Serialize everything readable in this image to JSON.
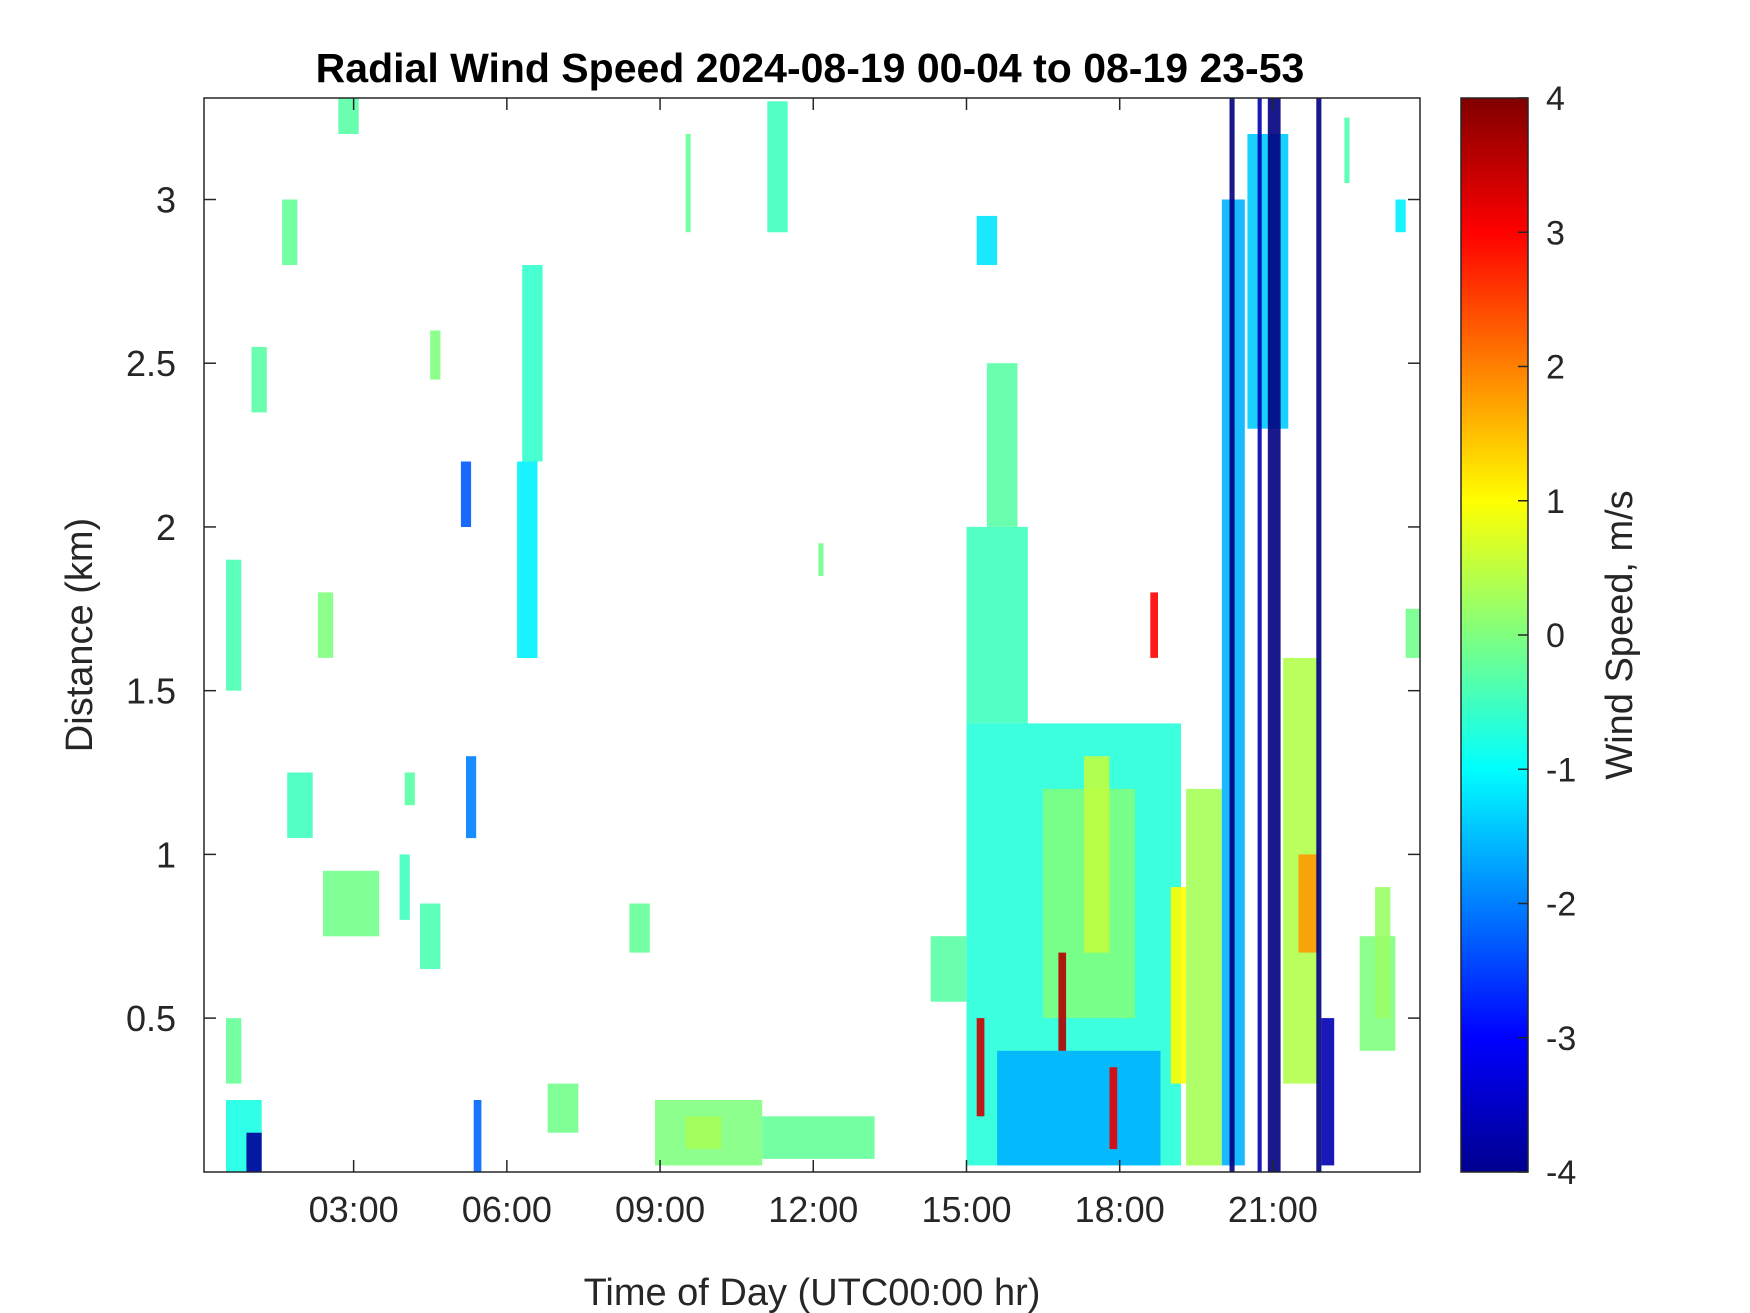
{
  "chart_data": {
    "type": "heatmap",
    "title": "Radial Wind Speed 2024-08-19 00-04 to 08-19 23-53",
    "xlabel": "Time of Day (UTC00:00 hr)",
    "ylabel": "Distance (km)",
    "x_ticks": [
      {
        "value": 3,
        "label": "03:00"
      },
      {
        "value": 6,
        "label": "06:00"
      },
      {
        "value": 9,
        "label": "09:00"
      },
      {
        "value": 12,
        "label": "12:00"
      },
      {
        "value": 15,
        "label": "15:00"
      },
      {
        "value": 18,
        "label": "18:00"
      },
      {
        "value": 21,
        "label": "21:00"
      }
    ],
    "y_ticks": [
      {
        "value": 0.5,
        "label": "0.5"
      },
      {
        "value": 1,
        "label": "1"
      },
      {
        "value": 1.5,
        "label": "1.5"
      },
      {
        "value": 2,
        "label": "2"
      },
      {
        "value": 2.5,
        "label": "2.5"
      },
      {
        "value": 3,
        "label": "3"
      }
    ],
    "xlim": [
      0.07,
      23.88
    ],
    "ylim": [
      0.03,
      3.31
    ],
    "grid": false,
    "colorbar": {
      "label": "Wind Speed, m/s",
      "range": [
        -4,
        4
      ],
      "colormap": "jet",
      "ticks": [
        {
          "value": 4,
          "label": "4"
        },
        {
          "value": 3,
          "label": "3"
        },
        {
          "value": 2,
          "label": "2"
        },
        {
          "value": 1,
          "label": "1"
        },
        {
          "value": 0,
          "label": "0"
        },
        {
          "value": -1,
          "label": "-1"
        },
        {
          "value": -2,
          "label": "-2"
        },
        {
          "value": -3,
          "label": "-3"
        },
        {
          "value": -4,
          "label": "-4"
        }
      ]
    },
    "regions": [
      {
        "x": [
          0.5,
          1.2
        ],
        "y": [
          0.03,
          0.25
        ],
        "v": -0.8
      },
      {
        "x": [
          0.9,
          1.2
        ],
        "y": [
          0.03,
          0.15
        ],
        "v": -3.8
      },
      {
        "x": [
          0.5,
          0.8
        ],
        "y": [
          0.3,
          0.5
        ],
        "v": -0.2
      },
      {
        "x": [
          0.5,
          0.8
        ],
        "y": [
          1.5,
          1.9
        ],
        "v": -0.4
      },
      {
        "x": [
          1.0,
          1.3
        ],
        "y": [
          2.35,
          2.55
        ],
        "v": -0.3
      },
      {
        "x": [
          1.6,
          1.9
        ],
        "y": [
          2.8,
          3.0
        ],
        "v": -0.2
      },
      {
        "x": [
          2.7,
          3.1
        ],
        "y": [
          3.2,
          3.31
        ],
        "v": -0.3
      },
      {
        "x": [
          1.7,
          2.2
        ],
        "y": [
          1.05,
          1.25
        ],
        "v": -0.5
      },
      {
        "x": [
          2.4,
          3.5
        ],
        "y": [
          0.75,
          0.95
        ],
        "v": -0.1
      },
      {
        "x": [
          2.3,
          2.6
        ],
        "y": [
          1.6,
          1.8
        ],
        "v": 0.0
      },
      {
        "x": [
          3.9,
          4.1
        ],
        "y": [
          0.8,
          1.0
        ],
        "v": -0.5
      },
      {
        "x": [
          4.3,
          4.7
        ],
        "y": [
          0.65,
          0.85
        ],
        "v": -0.4
      },
      {
        "x": [
          4.0,
          4.2
        ],
        "y": [
          1.15,
          1.25
        ],
        "v": -0.3
      },
      {
        "x": [
          4.5,
          4.7
        ],
        "y": [
          2.45,
          2.6
        ],
        "v": 0.0
      },
      {
        "x": [
          5.2,
          5.4
        ],
        "y": [
          1.05,
          1.3
        ],
        "v": -2.0
      },
      {
        "x": [
          5.1,
          5.3
        ],
        "y": [
          2.0,
          2.2
        ],
        "v": -2.3
      },
      {
        "x": [
          5.35,
          5.5
        ],
        "y": [
          0.03,
          0.25
        ],
        "v": -2.2
      },
      {
        "x": [
          6.2,
          6.6
        ],
        "y": [
          1.6,
          2.2
        ],
        "v": -1.1
      },
      {
        "x": [
          6.3,
          6.7
        ],
        "y": [
          2.2,
          2.8
        ],
        "v": -0.6
      },
      {
        "x": [
          6.8,
          7.4
        ],
        "y": [
          0.15,
          0.3
        ],
        "v": -0.1
      },
      {
        "x": [
          8.4,
          8.8
        ],
        "y": [
          0.7,
          0.85
        ],
        "v": -0.2
      },
      {
        "x": [
          8.9,
          11.0
        ],
        "y": [
          0.05,
          0.25
        ],
        "v": 0.0
      },
      {
        "x": [
          9.5,
          10.2
        ],
        "y": [
          0.1,
          0.2
        ],
        "v": 0.3
      },
      {
        "x": [
          11.0,
          13.2
        ],
        "y": [
          0.07,
          0.2
        ],
        "v": -0.2
      },
      {
        "x": [
          11.1,
          11.5
        ],
        "y": [
          2.9,
          3.3
        ],
        "v": -0.5
      },
      {
        "x": [
          9.5,
          9.6
        ],
        "y": [
          2.9,
          3.2
        ],
        "v": -0.2
      },
      {
        "x": [
          12.1,
          12.2
        ],
        "y": [
          1.85,
          1.95
        ],
        "v": -0.1
      },
      {
        "x": [
          14.3,
          15.0
        ],
        "y": [
          0.55,
          0.75
        ],
        "v": -0.3
      },
      {
        "x": [
          15.0,
          19.2
        ],
        "y": [
          0.05,
          1.4
        ],
        "v": -0.7
      },
      {
        "x": [
          15.6,
          18.8
        ],
        "y": [
          0.05,
          0.4
        ],
        "v": -1.6
      },
      {
        "x": [
          16.5,
          18.3
        ],
        "y": [
          0.5,
          1.2
        ],
        "v": 0.0
      },
      {
        "x": [
          17.3,
          17.8
        ],
        "y": [
          0.7,
          1.3
        ],
        "v": 0.5
      },
      {
        "x": [
          15.0,
          16.2
        ],
        "y": [
          1.4,
          2.0
        ],
        "v": -0.5
      },
      {
        "x": [
          15.4,
          16.0
        ],
        "y": [
          2.0,
          2.5
        ],
        "v": -0.3
      },
      {
        "x": [
          15.2,
          15.6
        ],
        "y": [
          2.8,
          2.95
        ],
        "v": -1.2
      },
      {
        "x": [
          15.2,
          15.35
        ],
        "y": [
          0.2,
          0.5
        ],
        "v": 3.4
      },
      {
        "x": [
          16.8,
          16.95
        ],
        "y": [
          0.4,
          0.7
        ],
        "v": 3.6
      },
      {
        "x": [
          17.8,
          17.95
        ],
        "y": [
          0.1,
          0.35
        ],
        "v": 3.2
      },
      {
        "x": [
          18.6,
          18.75
        ],
        "y": [
          1.6,
          1.8
        ],
        "v": 3.0
      },
      {
        "x": [
          19.3,
          20.0
        ],
        "y": [
          0.05,
          1.2
        ],
        "v": 0.3
      },
      {
        "x": [
          19.0,
          19.3
        ],
        "y": [
          0.3,
          0.9
        ],
        "v": 1.0
      },
      {
        "x": [
          20.0,
          20.45
        ],
        "y": [
          0.05,
          3.0
        ],
        "v": -1.6
      },
      {
        "x": [
          20.15,
          20.25
        ],
        "y": [
          0.03,
          3.31
        ],
        "v": -4.0
      },
      {
        "x": [
          20.5,
          21.3
        ],
        "y": [
          2.3,
          3.2
        ],
        "v": -1.4
      },
      {
        "x": [
          20.9,
          21.15
        ],
        "y": [
          0.03,
          3.31
        ],
        "v": -4.0
      },
      {
        "x": [
          20.7,
          20.78
        ],
        "y": [
          0.03,
          3.31
        ],
        "v": -3.6
      },
      {
        "x": [
          21.2,
          21.9
        ],
        "y": [
          0.3,
          1.6
        ],
        "v": 0.4
      },
      {
        "x": [
          21.5,
          21.9
        ],
        "y": [
          0.7,
          1.0
        ],
        "v": 1.8
      },
      {
        "x": [
          21.85,
          21.95
        ],
        "y": [
          0.03,
          3.31
        ],
        "v": -4.0
      },
      {
        "x": [
          21.95,
          22.2
        ],
        "y": [
          0.05,
          0.5
        ],
        "v": -3.6
      },
      {
        "x": [
          22.4,
          22.5
        ],
        "y": [
          3.05,
          3.25
        ],
        "v": -0.4
      },
      {
        "x": [
          22.7,
          23.4
        ],
        "y": [
          0.4,
          0.75
        ],
        "v": 0.0
      },
      {
        "x": [
          23.0,
          23.3
        ],
        "y": [
          0.5,
          0.9
        ],
        "v": 0.2
      },
      {
        "x": [
          23.6,
          23.88
        ],
        "y": [
          1.6,
          1.75
        ],
        "v": -0.1
      },
      {
        "x": [
          23.4,
          23.6
        ],
        "y": [
          2.9,
          3.0
        ],
        "v": -1.1
      }
    ]
  }
}
